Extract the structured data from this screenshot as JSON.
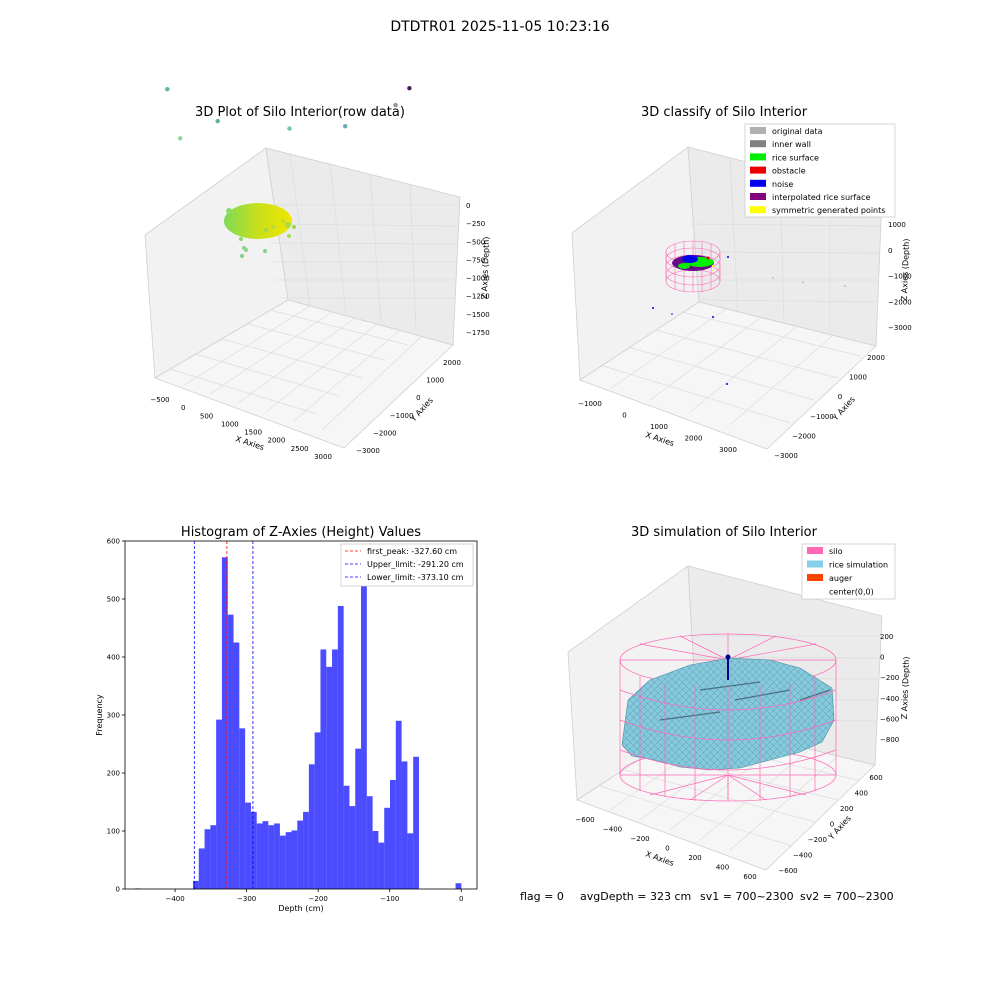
{
  "suptitle": "DTDTR01 2025-11-05 10:23:16",
  "footer": {
    "flag": "flag = 0",
    "avg_depth": "avgDepth = 323 cm",
    "sv1": "sv1 = 700~2300",
    "sv2": "sv2 = 700~2300"
  },
  "chart_data": [
    {
      "type": "scatter",
      "title": "3D Plot of Silo Interior(row data)",
      "xlabel": "X Axies",
      "ylabel": "Y Axies",
      "zlabel": "Z Axies (Depth)",
      "x_ticks": [
        "−500",
        "0",
        "500",
        "1000",
        "1500",
        "2000",
        "2500",
        "3000"
      ],
      "y_ticks": [
        "2000",
        "1000",
        "0",
        "−1000",
        "−2000",
        "−3000"
      ],
      "z_ticks": [
        "0",
        "−250",
        "−500",
        "−750",
        "−1000",
        "−1250",
        "−1500",
        "−1750"
      ],
      "colormap": "viridis",
      "scatter_points": [
        {
          "x": 100,
          "y": 800,
          "z": -1000,
          "color": "#8fd4a0"
        },
        {
          "x": -350,
          "y": 600,
          "z": -1550,
          "color": "#5bb8a8"
        },
        {
          "x": 600,
          "y": 300,
          "z": -1250,
          "color": "#5bb0a6"
        },
        {
          "x": 1450,
          "y": -800,
          "z": -1150,
          "color": "#6ec6a4"
        },
        {
          "x": 2300,
          "y": -1400,
          "z": -1250,
          "color": "#6aaab2"
        },
        {
          "x": 2950,
          "y": -2100,
          "z": -1550,
          "color": "#8a9a9e"
        },
        {
          "x": 2900,
          "y": -2600,
          "z": -1700,
          "color": "#4a1a5a"
        }
      ]
    },
    {
      "type": "scatter",
      "title": "3D classify of Silo Interior",
      "xlabel": "X Axies",
      "ylabel": "Y Axies",
      "zlabel": "Z Axies (Depth)",
      "x_ticks": [
        "−1000",
        "0",
        "1000",
        "2000",
        "3000"
      ],
      "y_ticks": [
        "2000",
        "1000",
        "0",
        "−1000",
        "−2000",
        "−3000"
      ],
      "z_ticks": [
        "1000",
        "0",
        "−1000",
        "−2000",
        "−3000"
      ],
      "legend_placement": "top-right",
      "legend": [
        {
          "label": "original data",
          "color": "#b0b0b0"
        },
        {
          "label": "inner wall",
          "color": "#808080"
        },
        {
          "label": "rice surface",
          "color": "#00ee00"
        },
        {
          "label": "obstacle",
          "color": "#ee0000"
        },
        {
          "label": "noise",
          "color": "#0000ee"
        },
        {
          "label": "interpolated rice surface",
          "color": "#800080"
        },
        {
          "label": "symmetric generated points",
          "color": "#ffff00"
        }
      ]
    },
    {
      "type": "bar",
      "title": "Histogram of Z-Axies (Height) Values",
      "xlabel": "Depth (cm)",
      "ylabel": "Frequency",
      "xlim": [
        -470,
        22
      ],
      "ylim": [
        0,
        600
      ],
      "x_ticks": [
        -400,
        -300,
        -200,
        -100,
        0
      ],
      "y_ticks": [
        0,
        100,
        200,
        300,
        400,
        500,
        600
      ],
      "bin_width": 8.1,
      "bar_color": "#0000ff",
      "bins": [
        {
          "x0": -456,
          "value": 1
        },
        {
          "x0": -375,
          "value": 14
        },
        {
          "x0": -366.9,
          "value": 70
        },
        {
          "x0": -358.8,
          "value": 103
        },
        {
          "x0": -350.7,
          "value": 110
        },
        {
          "x0": -342.6,
          "value": 292
        },
        {
          "x0": -334.5,
          "value": 572
        },
        {
          "x0": -326.4,
          "value": 473
        },
        {
          "x0": -318.3,
          "value": 425
        },
        {
          "x0": -310.2,
          "value": 277
        },
        {
          "x0": -302.1,
          "value": 149
        },
        {
          "x0": -294,
          "value": 133
        },
        {
          "x0": -285.9,
          "value": 113
        },
        {
          "x0": -277.8,
          "value": 117
        },
        {
          "x0": -269.7,
          "value": 110
        },
        {
          "x0": -261.6,
          "value": 113
        },
        {
          "x0": -253.5,
          "value": 92
        },
        {
          "x0": -245.4,
          "value": 98
        },
        {
          "x0": -237.3,
          "value": 101
        },
        {
          "x0": -229.2,
          "value": 118
        },
        {
          "x0": -221.1,
          "value": 133
        },
        {
          "x0": -213,
          "value": 215
        },
        {
          "x0": -204.9,
          "value": 270
        },
        {
          "x0": -196.8,
          "value": 413
        },
        {
          "x0": -188.7,
          "value": 383
        },
        {
          "x0": -180.6,
          "value": 413
        },
        {
          "x0": -172.5,
          "value": 488
        },
        {
          "x0": -164.4,
          "value": 178
        },
        {
          "x0": -156.3,
          "value": 143
        },
        {
          "x0": -148.2,
          "value": 242
        },
        {
          "x0": -140.1,
          "value": 534
        },
        {
          "x0": -132,
          "value": 160
        },
        {
          "x0": -123.9,
          "value": 100
        },
        {
          "x0": -115.8,
          "value": 80
        },
        {
          "x0": -107.7,
          "value": 140
        },
        {
          "x0": -99.6,
          "value": 188
        },
        {
          "x0": -91.5,
          "value": 290
        },
        {
          "x0": -83.4,
          "value": 220
        },
        {
          "x0": -75.3,
          "value": 96
        },
        {
          "x0": -67.2,
          "value": 228
        },
        {
          "x0": -8,
          "value": 10
        }
      ],
      "vlines": [
        {
          "x": -327.6,
          "color": "#ff0000"
        },
        {
          "x": -291.2,
          "color": "#0000ff"
        },
        {
          "x": -373.1,
          "color": "#0000ff"
        }
      ],
      "legend_placement": "top-right",
      "legend": [
        {
          "label": "first_peak: -327.60 cm",
          "color": "#ff0000"
        },
        {
          "label": "Upper_limit: -291.20 cm",
          "color": "#0000ff"
        },
        {
          "label": "Lower_limit: -373.10 cm",
          "color": "#0000ff"
        }
      ]
    },
    {
      "type": "surface",
      "title": "3D simulation of Silo Interior",
      "xlabel": "X Axies",
      "ylabel": "Y Axies",
      "zlabel": "Z Axies (Depth)",
      "x_ticks": [
        "−600",
        "−400",
        "−200",
        "0",
        "200",
        "400",
        "600"
      ],
      "y_ticks": [
        "600",
        "400",
        "200",
        "0",
        "−200",
        "−400",
        "−600"
      ],
      "z_ticks": [
        "200",
        "0",
        "−200",
        "−400",
        "−600",
        "−800"
      ],
      "legend_placement": "top-right",
      "legend": [
        {
          "label": "silo",
          "color": "#ff69b4"
        },
        {
          "label": "rice simulation",
          "color": "#87ceeb"
        },
        {
          "label": "auger",
          "color": "#ff4500"
        },
        {
          "label": "center(0,0)",
          "color": "#ffffff"
        }
      ]
    }
  ]
}
